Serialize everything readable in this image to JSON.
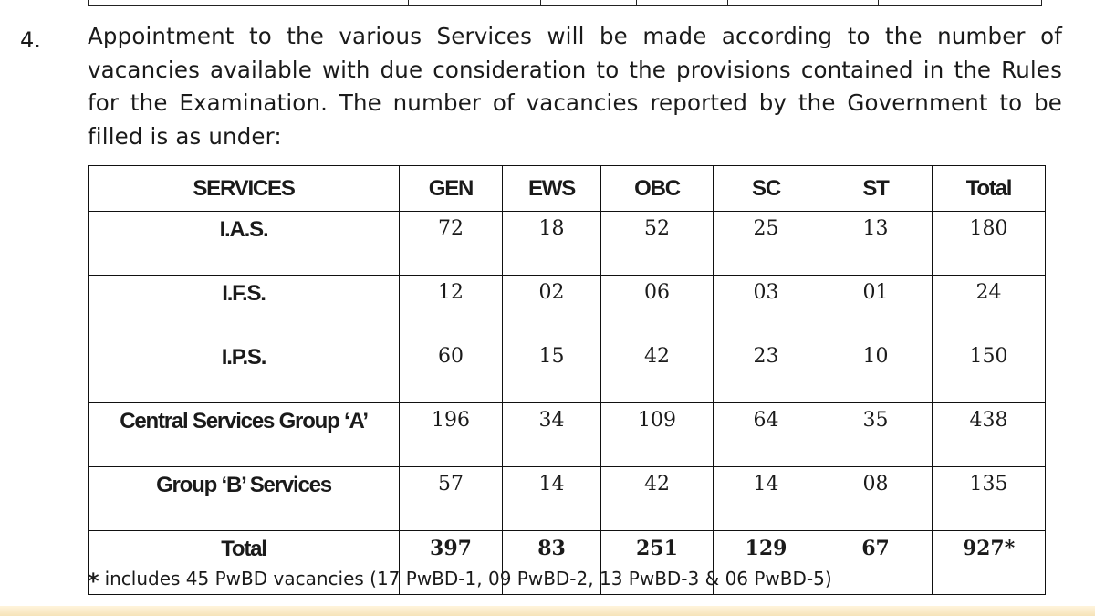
{
  "paragraph": {
    "number": "4.",
    "text": "Appointment to the various Services will be made according to the number of vacancies available with due consideration to the provisions contained in the Rules for the Examination. The number of vacancies reported by the Government to be filled is as under:"
  },
  "table": {
    "headers": [
      "SERVICES",
      "GEN",
      "EWS",
      "OBC",
      "SC",
      "ST",
      "Total"
    ],
    "rows": [
      [
        "I.A.S.",
        "72",
        "18",
        "52",
        "25",
        "13",
        "180"
      ],
      [
        "I.F.S.",
        "12",
        "02",
        "06",
        "03",
        "01",
        "24"
      ],
      [
        "I.P.S.",
        "60",
        "15",
        "42",
        "23",
        "10",
        "150"
      ],
      [
        "Central Services Group ‘A’",
        "196",
        "34",
        "109",
        "64",
        "35",
        "438"
      ],
      [
        "Group ‘B’ Services",
        "57",
        "14",
        "42",
        "14",
        "08",
        "135"
      ]
    ],
    "total_row": [
      "Total",
      "397",
      "83",
      "251",
      "129",
      "67",
      "927*"
    ]
  },
  "footnote": {
    "marker": "*",
    "text": "includes 45 PwBD vacancies (17 PwBD-1, 09 PwBD-2, 13 PwBD-3 & 06 PwBD-5)"
  }
}
